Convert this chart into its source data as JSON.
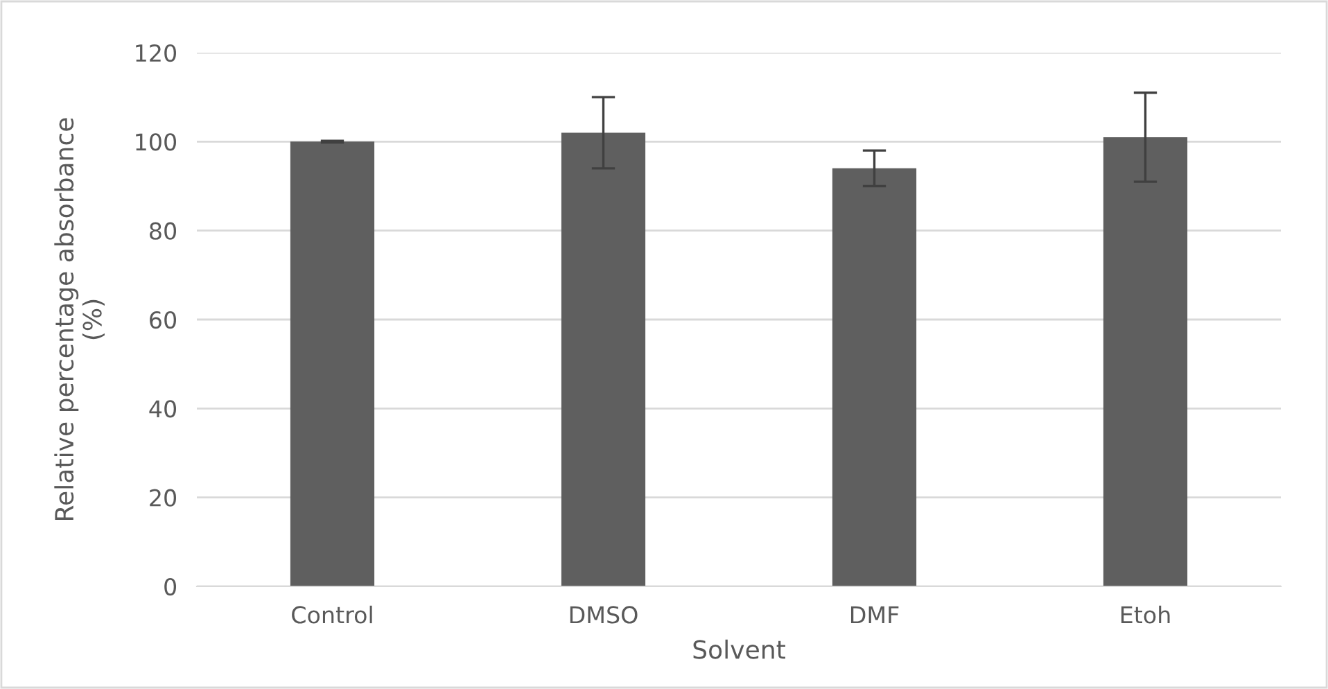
{
  "chart_data": {
    "type": "bar",
    "xlabel": "Solvent",
    "ylabel": "Relative percentage absorbance\n(%)",
    "categories": [
      "Control",
      "DMSO",
      "DMF",
      "Etoh"
    ],
    "series": [
      {
        "color": "#5f5f5f",
        "values": [
          100,
          102,
          94,
          101
        ],
        "errors": [
          0.2,
          8,
          4,
          10
        ]
      }
    ],
    "ylim": [
      0,
      120
    ],
    "yticks": [
      0,
      20,
      40,
      60,
      80,
      100,
      120
    ],
    "grid": "y",
    "legend": false
  }
}
